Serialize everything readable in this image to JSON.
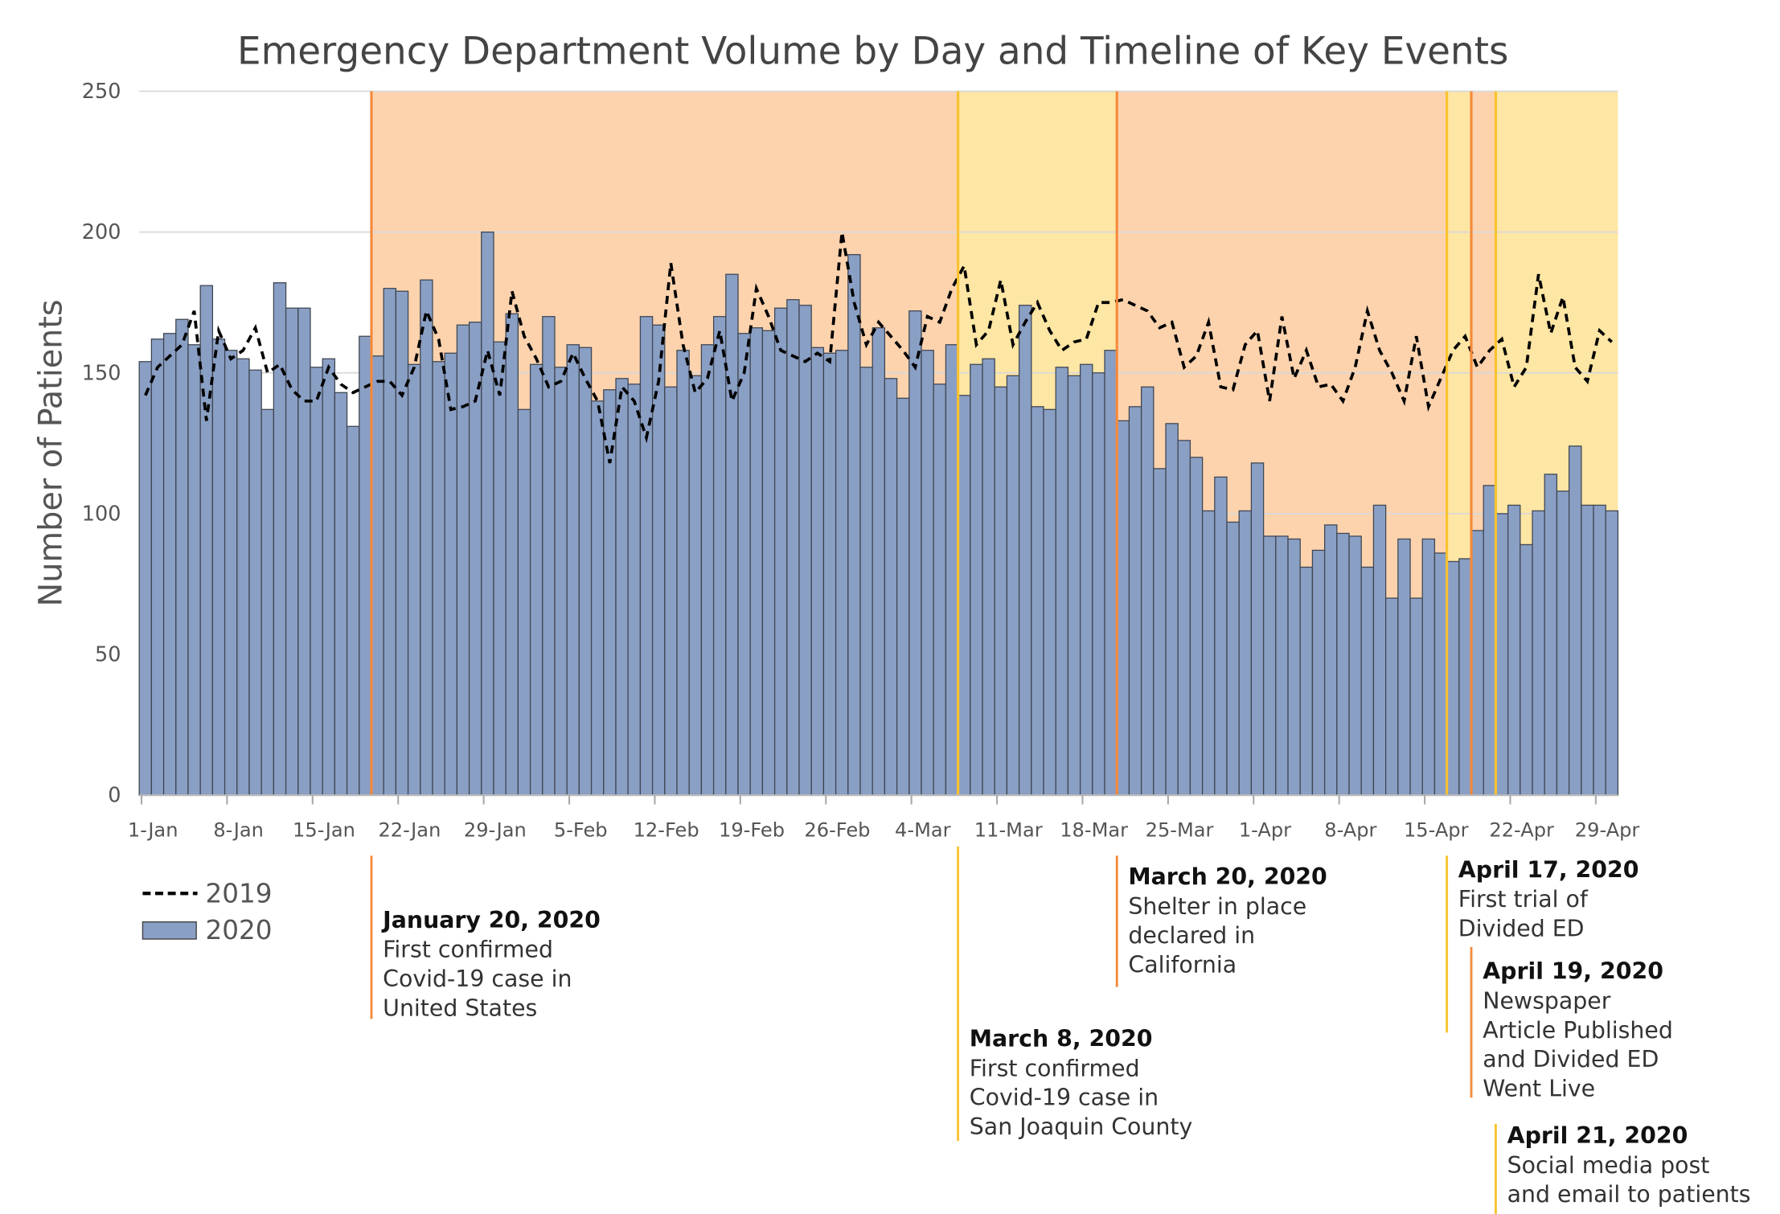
{
  "chart_data": {
    "type": "bar",
    "title": "Emergency Department Volume by Day and Timeline of Key Events",
    "xlabel": "",
    "ylabel": "Number of Patients",
    "ylim": [
      0,
      250
    ],
    "yticks": [
      0,
      50,
      100,
      150,
      200,
      250
    ],
    "grid": true,
    "legend_placement": "bottom-left",
    "start_date": "1-Jan",
    "xtick_labels": [
      "1-Jan",
      "8-Jan",
      "15-Jan",
      "22-Jan",
      "29-Jan",
      "5-Feb",
      "12-Feb",
      "19-Feb",
      "26-Feb",
      "4-Mar",
      "11-Mar",
      "18-Mar",
      "25-Mar",
      "1-Apr",
      "8-Apr",
      "15-Apr",
      "22-Apr",
      "29-Apr"
    ],
    "series": [
      {
        "name": "2020",
        "type": "bar",
        "color": "#8a9fc4",
        "values": [
          154,
          162,
          164,
          169,
          160,
          181,
          162,
          158,
          155,
          151,
          137,
          182,
          173,
          173,
          152,
          155,
          143,
          131,
          163,
          156,
          180,
          179,
          153,
          183,
          154,
          157,
          167,
          168,
          200,
          161,
          171,
          137,
          153,
          170,
          152,
          160,
          159,
          140,
          144,
          148,
          146,
          170,
          167,
          145,
          158,
          149,
          160,
          170,
          185,
          164,
          166,
          165,
          173,
          176,
          174,
          159,
          157,
          158,
          192,
          152,
          166,
          148,
          141,
          172,
          158,
          146,
          160,
          142,
          153,
          155,
          145,
          149,
          174,
          138,
          137,
          152,
          149,
          153,
          150,
          158,
          133,
          138,
          145,
          116,
          132,
          126,
          120,
          101,
          113,
          97,
          101,
          118,
          92,
          92,
          91,
          81,
          87,
          96,
          93,
          92,
          81,
          103,
          70,
          91,
          70,
          91,
          86,
          83,
          84,
          94,
          110,
          100,
          103,
          89,
          101,
          114,
          108,
          124,
          103,
          103,
          101
        ]
      },
      {
        "name": "2019",
        "type": "line",
        "style": "dashed",
        "color": "#000000",
        "values": [
          142,
          152,
          156,
          160,
          172,
          133,
          165,
          155,
          158,
          166,
          150,
          153,
          144,
          140,
          140,
          152,
          146,
          143,
          145,
          147,
          147,
          142,
          152,
          172,
          162,
          137,
          138,
          140,
          158,
          142,
          179,
          163,
          155,
          145,
          147,
          157,
          148,
          140,
          118,
          145,
          140,
          127,
          147,
          189,
          160,
          143,
          148,
          165,
          140,
          150,
          180,
          170,
          158,
          156,
          154,
          157,
          154,
          200,
          175,
          160,
          168,
          163,
          158,
          152,
          170,
          168,
          180,
          188,
          160,
          165,
          183,
          160,
          168,
          175,
          165,
          158,
          161,
          162,
          175,
          175,
          176,
          174,
          172,
          166,
          168,
          152,
          156,
          168,
          145,
          144,
          160,
          165,
          140,
          170,
          148,
          158,
          145,
          146,
          140,
          152,
          172,
          158,
          150,
          140,
          163,
          138,
          148,
          158,
          163,
          152,
          158,
          162,
          145,
          152,
          185,
          164,
          177,
          152,
          147,
          165,
          161
        ]
      }
    ],
    "shading": [
      {
        "from_day": 19,
        "to_day": 67,
        "color": "#fdd3ae"
      },
      {
        "from_day": 67,
        "to_day": 80,
        "color": "#fee6a4"
      },
      {
        "from_day": 80,
        "to_day": 107,
        "color": "#fdd3ae"
      },
      {
        "from_day": 107,
        "to_day": 109,
        "color": "#fee6a4"
      },
      {
        "from_day": 109,
        "to_day": 111,
        "color": "#fdd3ae"
      },
      {
        "from_day": 111,
        "to_day": 121,
        "color": "#fee6a4"
      }
    ],
    "events": [
      {
        "day": 19,
        "color": "#f5893a",
        "date": "January 20, 2020",
        "lines": [
          "First confirmed",
          "Covid-19 case in",
          "United States"
        ]
      },
      {
        "day": 67,
        "color": "#f9c22e",
        "date": "March 8, 2020",
        "lines": [
          "First confirmed",
          "Covid-19 case in",
          "San Joaquin County"
        ]
      },
      {
        "day": 80,
        "color": "#f5893a",
        "date": "March 20, 2020",
        "lines": [
          "Shelter in place",
          "declared in",
          "California"
        ]
      },
      {
        "day": 107,
        "color": "#f9c22e",
        "date": "April 17, 2020",
        "lines": [
          "First trial of",
          "Divided ED"
        ]
      },
      {
        "day": 109,
        "color": "#f5893a",
        "date": "April 19, 2020",
        "lines": [
          "Newspaper",
          "Article Published",
          "and Divided ED",
          "Went Live"
        ]
      },
      {
        "day": 111,
        "color": "#f9c22e",
        "date": "April 21, 2020",
        "lines": [
          "Social media post",
          "and email to patients"
        ]
      }
    ]
  }
}
